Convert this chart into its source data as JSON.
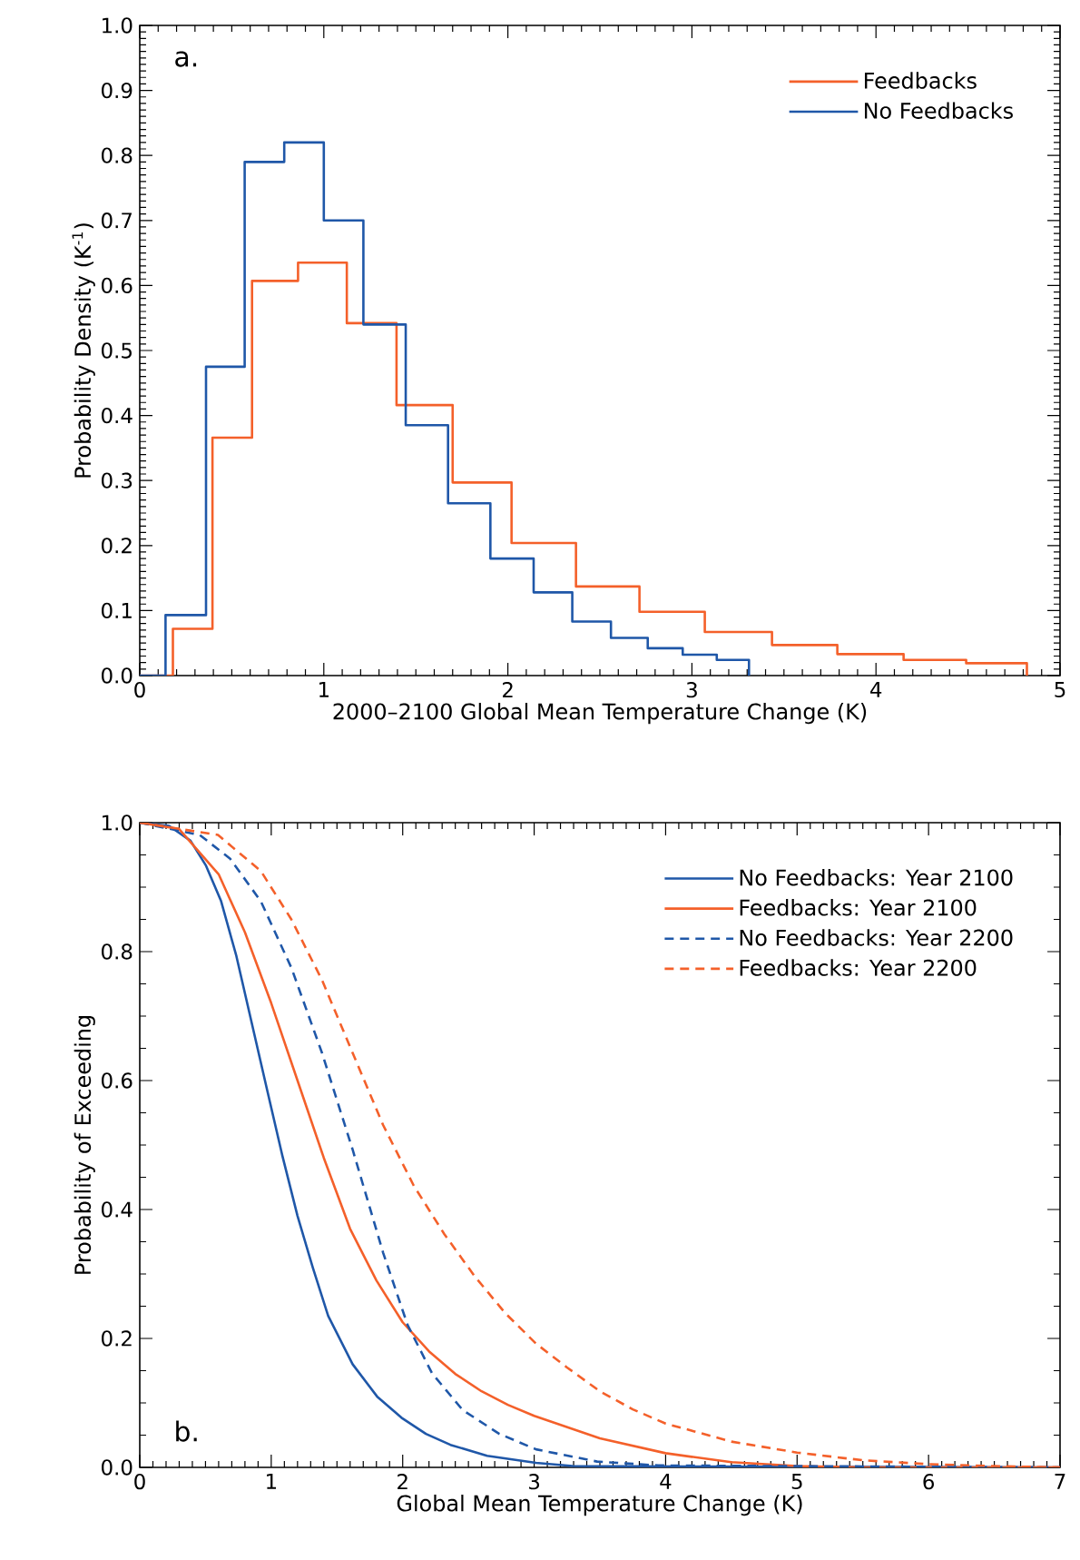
{
  "chart_data": [
    {
      "type": "step",
      "xlabel": "2000–2100 Global Mean Temperature Change (K)",
      "ylabel": "Probability Density (K$^{-1}$)",
      "annotations": [
        "a."
      ],
      "legend": "top right",
      "xlim": [
        0,
        5
      ],
      "ylim": [
        0,
        1
      ],
      "xticks": [
        0,
        1,
        2,
        3,
        4,
        5
      ],
      "yticks": [
        {
          "value": 0,
          "label": "0.0"
        },
        {
          "value": 0.1,
          "label": "0.1"
        },
        {
          "value": 0.2,
          "label": "0.2"
        },
        {
          "value": 0.3,
          "label": "0.3"
        },
        {
          "value": 0.4,
          "label": "0.4"
        },
        {
          "value": 0.5,
          "label": "0.5"
        },
        {
          "value": 0.6,
          "label": "0.6"
        },
        {
          "value": 0.7,
          "label": "0.7"
        },
        {
          "value": 0.8,
          "label": "0.8"
        },
        {
          "value": 0.9,
          "label": "0.9"
        },
        {
          "value": 1,
          "label": "1.0"
        }
      ],
      "series": [
        {
          "name": "Feedbacks",
          "color": "#f4602a",
          "x": [
            0,
            0.18,
            0.395,
            0.61,
            0.86,
            1.125,
            1.395,
            1.7,
            2.02,
            2.37,
            2.715,
            3.07,
            3.435,
            3.79,
            4.15,
            4.49,
            4.82
          ],
          "values": [
            0,
            0.072,
            0.366,
            0.607,
            0.635,
            0.542,
            0.416,
            0.297,
            0.204,
            0.137,
            0.098,
            0.067,
            0.047,
            0.033,
            0.024,
            0.019,
            0
          ]
        },
        {
          "name": "No Feedbacks",
          "color": "#1f57a8",
          "x": [
            0,
            0.14,
            0.36,
            0.57,
            0.785,
            1.0,
            1.215,
            1.445,
            1.675,
            1.905,
            2.14,
            2.35,
            2.56,
            2.76,
            2.95,
            3.135,
            3.31
          ],
          "values": [
            0,
            0.093,
            0.475,
            0.79,
            0.82,
            0.7,
            0.54,
            0.385,
            0.265,
            0.18,
            0.128,
            0.083,
            0.058,
            0.042,
            0.032,
            0.024,
            0
          ]
        }
      ]
    },
    {
      "type": "line",
      "xlabel": "Global Mean Temperature Change (K)",
      "ylabel": "Probability of Exceeding",
      "annotations": [
        "b."
      ],
      "legend": "top right",
      "xlim": [
        0,
        7
      ],
      "ylim": [
        0,
        1
      ],
      "xticks": [
        0,
        1,
        2,
        3,
        4,
        5,
        6,
        7
      ],
      "yticks": [
        {
          "value": 0,
          "label": "0.0"
        },
        {
          "value": 0.2,
          "label": "0.2"
        },
        {
          "value": 0.4,
          "label": "0.4"
        },
        {
          "value": 0.6,
          "label": "0.6"
        },
        {
          "value": 0.8,
          "label": "0.8"
        },
        {
          "value": 1,
          "label": "1.0"
        }
      ],
      "series": [
        {
          "name": "No Feedbacks: Year 2100",
          "color": "#1f57a8",
          "line_style": "solid",
          "x": [
            0,
            0.223,
            0.386,
            0.502,
            0.619,
            0.735,
            0.851,
            0.967,
            1.084,
            1.2,
            1.316,
            1.433,
            1.619,
            1.805,
            1.991,
            2.177,
            2.363,
            2.642,
            3.014,
            3.293,
            7
          ],
          "values": [
            1,
            0.995,
            0.972,
            0.934,
            0.878,
            0.793,
            0.69,
            0.587,
            0.484,
            0.39,
            0.31,
            0.235,
            0.16,
            0.11,
            0.077,
            0.052,
            0.035,
            0.018,
            0.007,
            0.002,
            0
          ]
        },
        {
          "name": "Feedbacks: Year 2100",
          "color": "#f4602a",
          "line_style": "solid",
          "x": [
            0,
            0.3,
            0.6,
            0.8,
            1.0,
            1.2,
            1.4,
            1.6,
            1.8,
            2.0,
            2.2,
            2.4,
            2.6,
            2.8,
            3.0,
            3.5,
            4.0,
            4.5,
            5,
            5.5,
            7
          ],
          "values": [
            1,
            0.99,
            0.92,
            0.83,
            0.72,
            0.6,
            0.48,
            0.37,
            0.29,
            0.225,
            0.18,
            0.145,
            0.118,
            0.097,
            0.08,
            0.045,
            0.022,
            0.008,
            0.002,
            0,
            0
          ]
        },
        {
          "name": "No Feedbacks: Year 2200",
          "color": "#1f57a8",
          "line_style": "dashed",
          "x": [
            0,
            0.456,
            0.688,
            0.921,
            1.153,
            1.386,
            1.619,
            1.851,
            2.037,
            2.223,
            2.456,
            2.735,
            3.014,
            3.479,
            3.944,
            7
          ],
          "values": [
            1,
            0.981,
            0.944,
            0.878,
            0.775,
            0.643,
            0.493,
            0.333,
            0.221,
            0.146,
            0.089,
            0.052,
            0.028,
            0.009,
            0.003,
            0
          ]
        },
        {
          "name": "Feedbacks: Year 2200",
          "color": "#f4602a",
          "line_style": "dashed",
          "x": [
            0,
            0.595,
            0.921,
            1.153,
            1.386,
            1.619,
            1.851,
            2.084,
            2.316,
            2.549,
            2.781,
            3.014,
            3.25,
            3.5,
            3.75,
            4.0,
            4.5,
            5.0,
            5.5,
            6.0,
            6.5,
            7
          ],
          "values": [
            1,
            0.981,
            0.925,
            0.85,
            0.756,
            0.643,
            0.531,
            0.437,
            0.362,
            0.296,
            0.239,
            0.192,
            0.155,
            0.118,
            0.09,
            0.068,
            0.04,
            0.023,
            0.011,
            0.005,
            0.002,
            0
          ]
        }
      ]
    }
  ]
}
